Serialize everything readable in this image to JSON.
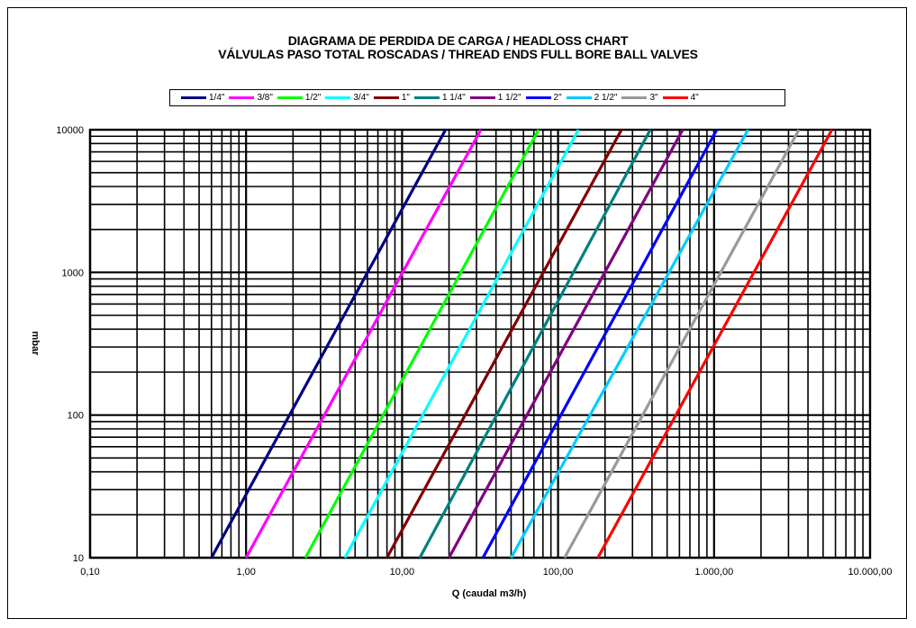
{
  "chart_data": {
    "type": "line",
    "title": "DIAGRAMA DE PERDIDA DE CARGA / HEADLOSS CHART",
    "subtitle": "VÁLVULAS PASO TOTAL ROSCADAS / THREAD ENDS FULL BORE BALL VALVES",
    "xlabel": "Q (caudal m3/h)",
    "ylabel": "mbar",
    "x_scale": "log",
    "y_scale": "log",
    "xlim": [
      0.1,
      10000
    ],
    "ylim": [
      10,
      10000
    ],
    "x_ticks": [
      "0,10",
      "1,00",
      "10,00",
      "100,00",
      "1.000,00",
      "10.000,00"
    ],
    "y_ticks": [
      "10",
      "100",
      "1000",
      "10000"
    ],
    "grid": true,
    "legend_position": "top",
    "series": [
      {
        "name": "1/4\"",
        "color": "#000080",
        "x": [
          0.6,
          19.0
        ],
        "y": [
          10,
          10000
        ]
      },
      {
        "name": "3/8\"",
        "color": "#ff00ff",
        "x": [
          1.0,
          32.0
        ],
        "y": [
          10,
          10000
        ]
      },
      {
        "name": "1/2\"",
        "color": "#00ff00",
        "x": [
          2.4,
          75.0
        ],
        "y": [
          10,
          10000
        ]
      },
      {
        "name": "3/4\"",
        "color": "#00ffff",
        "x": [
          4.3,
          135.0
        ],
        "y": [
          10,
          10000
        ]
      },
      {
        "name": "1\"",
        "color": "#800000",
        "x": [
          8.0,
          255.0
        ],
        "y": [
          10,
          10000
        ]
      },
      {
        "name": "1 1/4\"",
        "color": "#008080",
        "x": [
          13.0,
          390.0
        ],
        "y": [
          10,
          10000
        ]
      },
      {
        "name": "1 1/2\"",
        "color": "#800080",
        "x": [
          20.0,
          630.0
        ],
        "y": [
          10,
          10000
        ]
      },
      {
        "name": "2\"",
        "color": "#0000ff",
        "x": [
          33.0,
          1040.0
        ],
        "y": [
          10,
          10000
        ]
      },
      {
        "name": "2 1/2\"",
        "color": "#00ccff",
        "x": [
          50.0,
          1650.0
        ],
        "y": [
          10,
          10000
        ]
      },
      {
        "name": "3\"",
        "color": "#999999",
        "x": [
          110.0,
          3500.0
        ],
        "y": [
          10,
          10000
        ]
      },
      {
        "name": "4\"",
        "color": "#ff0000",
        "x": [
          180.0,
          5700.0
        ],
        "y": [
          10,
          10000
        ]
      }
    ]
  }
}
